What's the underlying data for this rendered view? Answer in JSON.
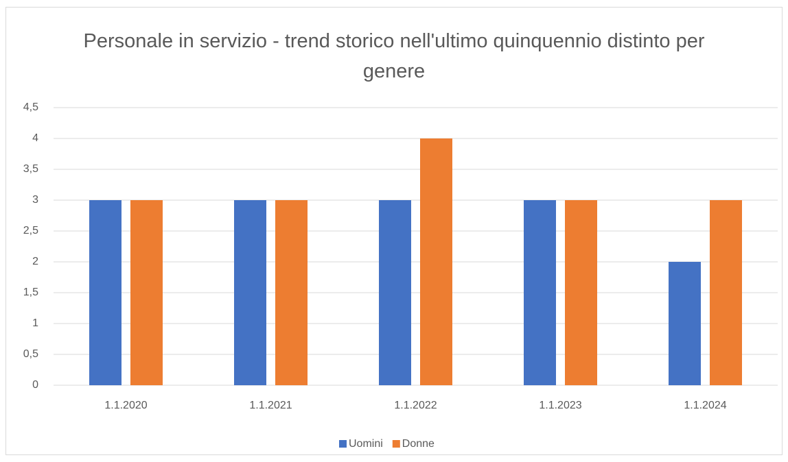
{
  "chart_data": {
    "type": "bar",
    "title": "Personale in servizio - trend storico nell'ultimo quinquennio distinto per genere",
    "categories": [
      "1.1.2020",
      "1.1.2021",
      "1.1.2022",
      "1.1.2023",
      "1.1.2024"
    ],
    "series": [
      {
        "name": "Uomini",
        "color": "#4472c4",
        "values": [
          3,
          3,
          3,
          3,
          2
        ]
      },
      {
        "name": "Donne",
        "color": "#ed7d31",
        "values": [
          3,
          3,
          4,
          3,
          3
        ]
      }
    ],
    "ylim": [
      0,
      4.5
    ],
    "yticks": [
      0,
      {
        "value": 0.5,
        "label": "0,5"
      },
      1,
      {
        "value": 1.5,
        "label": "1,5"
      },
      2,
      {
        "value": 2.5,
        "label": "2,5"
      },
      3,
      {
        "value": 3.5,
        "label": "3,5"
      },
      4,
      {
        "value": 4.5,
        "label": "4,5"
      }
    ],
    "grid": true,
    "legend": "bottom"
  }
}
